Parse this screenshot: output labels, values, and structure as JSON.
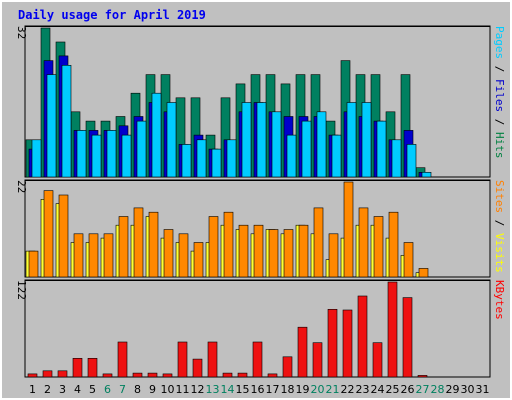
{
  "chart_data": [
    {
      "type": "bar",
      "title": "Daily usage for April 2019",
      "ymax_label": "32",
      "ylim": [
        0,
        32
      ],
      "right_labels": [
        {
          "text": "Pages",
          "color": "#00ccff"
        },
        {
          "text": "Files",
          "color": "#0000cc"
        },
        {
          "text": "Hits",
          "color": "#008040"
        }
      ],
      "series": [
        {
          "name": "Hits",
          "color": "#008060",
          "values": [
            8,
            32,
            29,
            14,
            12,
            12,
            13,
            18,
            22,
            22,
            17,
            17,
            9,
            17,
            20,
            22,
            22,
            20,
            22,
            22,
            12,
            25,
            22,
            22,
            14,
            22,
            2
          ]
        },
        {
          "name": "Files",
          "color": "#0000cc",
          "values": [
            6,
            25,
            26,
            10,
            10,
            10,
            11,
            13,
            16,
            14,
            7,
            9,
            6,
            8,
            14,
            16,
            14,
            13,
            13,
            13,
            9,
            14,
            13,
            12,
            8,
            10,
            1
          ]
        },
        {
          "name": "Pages",
          "color": "#00ccff",
          "values": [
            8,
            22,
            24,
            10,
            9,
            10,
            9,
            12,
            18,
            16,
            7,
            8,
            6,
            8,
            16,
            16,
            14,
            9,
            12,
            14,
            9,
            16,
            16,
            12,
            8,
            7,
            1
          ]
        }
      ]
    },
    {
      "type": "bar",
      "ymax_label": "22",
      "ylim": [
        0,
        22
      ],
      "right_labels": [
        {
          "text": "Sites",
          "color": "#ff8000"
        },
        {
          "text": "Visits",
          "color": "#ffff00"
        }
      ],
      "series": [
        {
          "name": "Visits",
          "color": "#ffff33",
          "values": [
            6,
            18,
            17,
            8,
            8,
            9,
            12,
            12,
            14,
            9,
            8,
            6,
            8,
            12,
            11,
            10,
            11,
            10,
            12,
            10,
            4,
            9,
            12,
            12,
            9,
            5,
            1
          ]
        },
        {
          "name": "Sites",
          "color": "#ff8800",
          "values": [
            6,
            20,
            19,
            10,
            10,
            10,
            14,
            16,
            15,
            11,
            10,
            8,
            14,
            15,
            12,
            12,
            11,
            11,
            12,
            16,
            10,
            22,
            16,
            14,
            15,
            8,
            2
          ]
        }
      ]
    },
    {
      "type": "bar",
      "ymax_label": "122",
      "ylim": [
        0,
        122
      ],
      "right_labels": [
        {
          "text": "KBytes",
          "color": "#ff0000"
        }
      ],
      "series": [
        {
          "name": "KBytes",
          "color": "#ee1111",
          "values": [
            4,
            8,
            8,
            24,
            24,
            4,
            45,
            5,
            5,
            4,
            45,
            23,
            45,
            5,
            5,
            45,
            4,
            26,
            64,
            44,
            87,
            86,
            104,
            44,
            122,
            102,
            2
          ]
        }
      ]
    }
  ],
  "x_labels": [
    "1",
    "2",
    "3",
    "4",
    "5",
    "6",
    "7",
    "8",
    "9",
    "10",
    "11",
    "12",
    "13",
    "14",
    "15",
    "16",
    "17",
    "18",
    "19",
    "20",
    "21",
    "22",
    "23",
    "24",
    "25",
    "26",
    "27",
    "28",
    "29",
    "30",
    "31"
  ],
  "weekend_days": [
    6,
    7,
    13,
    14,
    20,
    21,
    27,
    28
  ],
  "colors": {
    "weekday": "#000000",
    "weekend": "#00805f",
    "panel": "#c0c0c0"
  }
}
